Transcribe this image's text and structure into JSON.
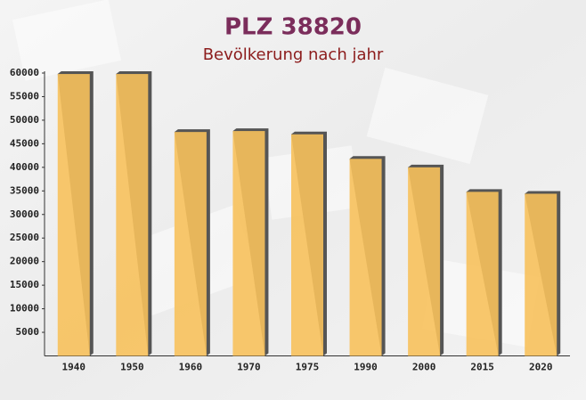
{
  "chart_data": {
    "type": "bar",
    "title": "PLZ 38820",
    "subtitle": "Bevölkerung nach jahr",
    "categories": [
      "1940",
      "1950",
      "1960",
      "1970",
      "1975",
      "1990",
      "2000",
      "2015",
      "2020"
    ],
    "values": [
      59800,
      59800,
      47500,
      47700,
      47000,
      41800,
      40000,
      34800,
      34400
    ],
    "color": "#f7c15c",
    "ylim": [
      0,
      60000
    ],
    "yticks": [
      5000,
      10000,
      15000,
      20000,
      25000,
      30000,
      35000,
      40000,
      45000,
      50000,
      55000,
      60000
    ],
    "grid": false
  }
}
